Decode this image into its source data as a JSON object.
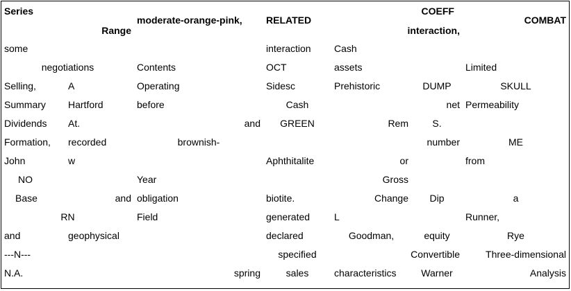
{
  "headers": {
    "series": "Series",
    "range": "Range",
    "color": "moderate-orange-pink,",
    "related": "RELATED",
    "coeff_top": "COEFF",
    "coeff_bottom": "interaction,",
    "combat": "COMBAT"
  },
  "rows": [
    [
      "some",
      "",
      "",
      "",
      "interaction",
      "Cash",
      "",
      ""
    ],
    [
      "negotiations",
      "",
      "Contents",
      "",
      "OCT",
      "assets",
      "",
      "Limited"
    ],
    [
      "Selling,",
      "A",
      "Operating",
      "",
      "Sidesc",
      "Prehistoric",
      "DUMP",
      "SKULL"
    ],
    [
      "Summary",
      "Hartford",
      "before",
      "",
      "Cash",
      "",
      "net",
      "Permeability"
    ],
    [
      "Dividends",
      "At.",
      "",
      "and",
      "GREEN",
      "Rem",
      "S.",
      ""
    ],
    [
      "Formation,",
      "recorded",
      "brownish-",
      "",
      "",
      "",
      "number",
      "ME"
    ],
    [
      "John",
      "w",
      "",
      "",
      "Aphthitalite",
      "or",
      "",
      "from"
    ],
    [
      "NO",
      "",
      "Year",
      "",
      "",
      "Gross",
      "",
      ""
    ],
    [
      "Base",
      "and",
      "obligation",
      "",
      "biotite.",
      "Change",
      "Dip",
      "a"
    ],
    [
      "RN",
      "",
      "Field",
      "",
      "generated",
      "L",
      "",
      "Runner,"
    ],
    [
      "and",
      "geophysical",
      "",
      "",
      "declared",
      "Goodman,",
      "equity",
      "Rye"
    ],
    [
      "---N---",
      "",
      "",
      "",
      "specified",
      "",
      "Convertible",
      "Three-dimensional"
    ],
    [
      "N.A.",
      "",
      "",
      "spring",
      "sales",
      "characteristics",
      "Warner",
      "Analysis"
    ]
  ]
}
